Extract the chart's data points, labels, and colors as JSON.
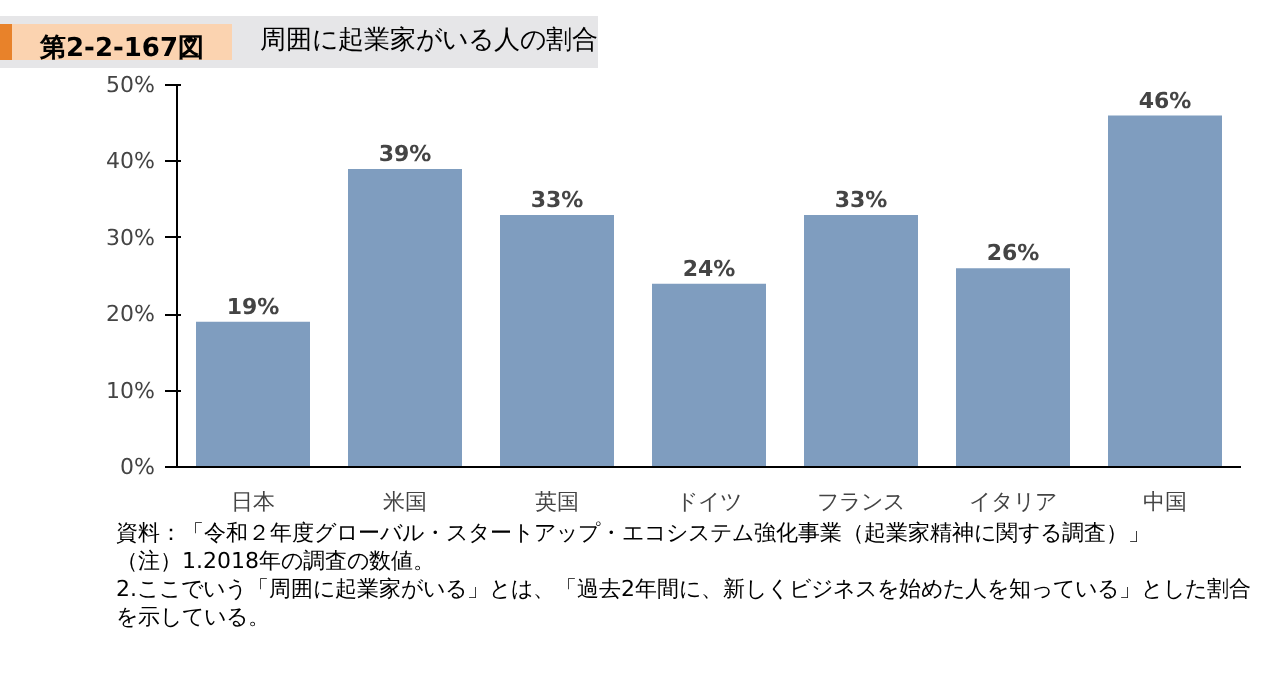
{
  "chart_data": {
    "type": "bar",
    "title": "第2-2-167図",
    "subtitle": "周囲に起業家がいる人の割合",
    "categories": [
      "日本",
      "米国",
      "英国",
      "ドイツ",
      "フランス",
      "イタリア",
      "中国"
    ],
    "values": [
      19,
      39,
      33,
      24,
      33,
      26,
      46
    ],
    "value_labels": [
      "19%",
      "39%",
      "33%",
      "24%",
      "33%",
      "26%",
      "46%"
    ],
    "color": "#7f9dbf",
    "ylim": [
      0,
      50
    ],
    "yticks": [
      {
        "value": 0,
        "label": "0%"
      },
      {
        "value": 10,
        "label": "10%"
      },
      {
        "value": 20,
        "label": "20%"
      },
      {
        "value": 30,
        "label": "30%"
      },
      {
        "value": 40,
        "label": "40%"
      },
      {
        "value": 50,
        "label": "50%"
      }
    ],
    "grid": false,
    "annotations": [
      "資料：「令和２年度グローバル・スタートアップ・エコシステム強化事業（起業家精神に関する調査）」",
      "（注）1.2018年の調査の数値。",
      "2.ここでいう「周囲に起業家がいる」とは、「過去2年間に、新しくビジネスを始めた人を知っている」とした割合を示している。"
    ]
  }
}
